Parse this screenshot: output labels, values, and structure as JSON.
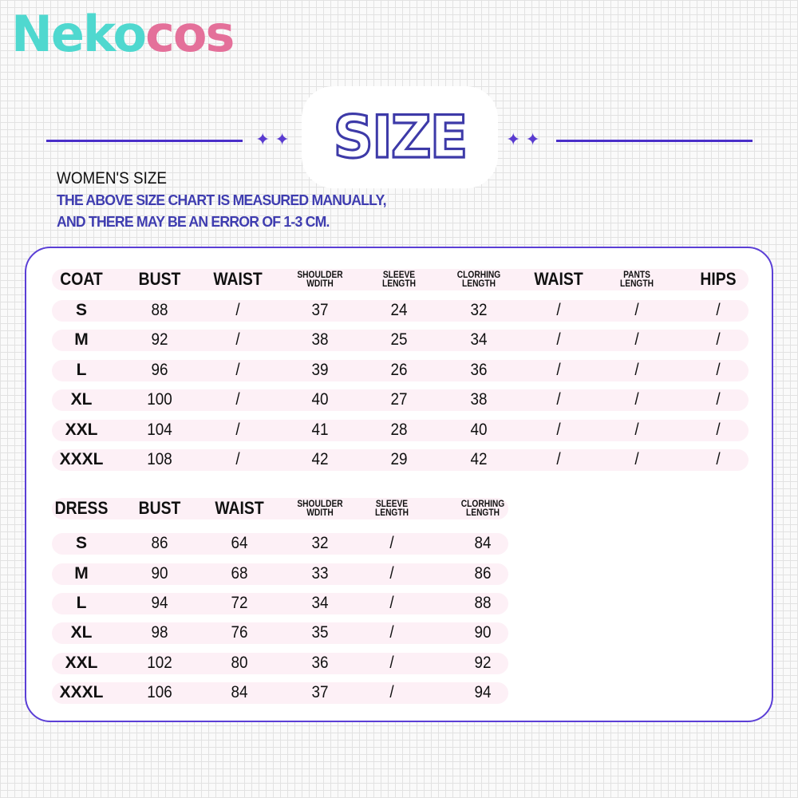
{
  "logo": {
    "part1": "Neko",
    "part2": "cos"
  },
  "colors": {
    "accent": "#5b3fd6",
    "logo_teal": "#4fd8cf",
    "logo_pink": "#e4709a",
    "row_bg": "#fdf0f6",
    "note": "#3f3db0"
  },
  "title": "SIZE",
  "subtitle": "WOMEN'S SIZE",
  "notes": [
    "THE ABOVE SIZE CHART IS MEASURED MANUALLY,",
    "AND THERE MAY BE AN ERROR OF 1-3 CM."
  ],
  "coat_table": {
    "headers": [
      "COAT",
      "BUST",
      "WAIST",
      "SHOULDER WDITH",
      "SLEEVE LENGTH",
      "CLORHING LENGTH",
      "WAIST",
      "PANTS LENGTH",
      "HIPS"
    ],
    "rows": [
      [
        "S",
        "88",
        "/",
        "37",
        "24",
        "32",
        "/",
        "/",
        "/"
      ],
      [
        "M",
        "92",
        "/",
        "38",
        "25",
        "34",
        "/",
        "/",
        "/"
      ],
      [
        "L",
        "96",
        "/",
        "39",
        "26",
        "36",
        "/",
        "/",
        "/"
      ],
      [
        "XL",
        "100",
        "/",
        "40",
        "27",
        "38",
        "/",
        "/",
        "/"
      ],
      [
        "XXL",
        "104",
        "/",
        "41",
        "28",
        "40",
        "/",
        "/",
        "/"
      ],
      [
        "XXXL",
        "108",
        "/",
        "42",
        "29",
        "42",
        "/",
        "/",
        "/"
      ]
    ]
  },
  "dress_table": {
    "headers": [
      "DRESS",
      "BUST",
      "WAIST",
      "SHOULDER WDITH",
      "SLEEVE LENGTH",
      "CLORHING LENGTH"
    ],
    "rows": [
      [
        "S",
        "86",
        "64",
        "32",
        "/",
        "84"
      ],
      [
        "M",
        "90",
        "68",
        "33",
        "/",
        "86"
      ],
      [
        "L",
        "94",
        "72",
        "34",
        "/",
        "88"
      ],
      [
        "XL",
        "98",
        "76",
        "35",
        "/",
        "90"
      ],
      [
        "XXL",
        "102",
        "80",
        "36",
        "/",
        "92"
      ],
      [
        "XXXL",
        "106",
        "84",
        "37",
        "/",
        "94"
      ]
    ]
  }
}
